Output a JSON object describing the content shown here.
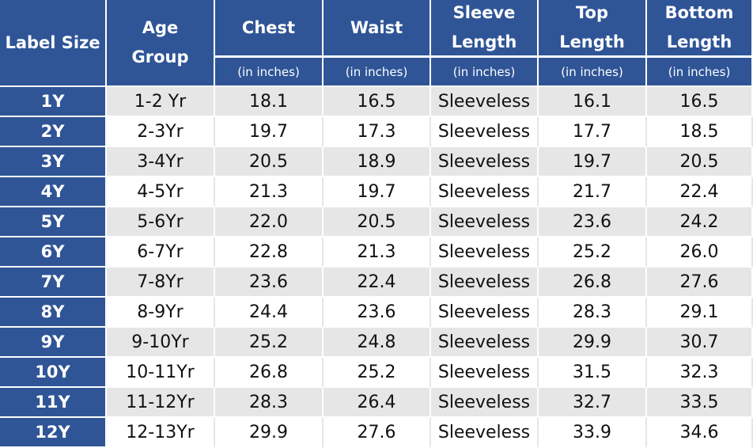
{
  "table": {
    "columns": [
      {
        "title": "Label Size"
      },
      {
        "title": "Age Group"
      },
      {
        "title": "Chest",
        "unit": "(in inches)"
      },
      {
        "title": "Waist",
        "unit": "(in inches)"
      },
      {
        "title": "Sleeve Length",
        "unit": "(in inches)"
      },
      {
        "title": "Top Length",
        "unit": "(in inches)"
      },
      {
        "title": "Bottom Length",
        "unit": "(in inches)"
      }
    ],
    "rows": [
      [
        "1Y",
        "1-2 Yr",
        "18.1",
        "16.5",
        "Sleeveless",
        "16.1",
        "16.5"
      ],
      [
        "2Y",
        "2-3Yr",
        "19.7",
        "17.3",
        "Sleeveless",
        "17.7",
        "18.5"
      ],
      [
        "3Y",
        "3-4Yr",
        "20.5",
        "18.9",
        "Sleeveless",
        "19.7",
        "20.5"
      ],
      [
        "4Y",
        "4-5Yr",
        "21.3",
        "19.7",
        "Sleeveless",
        "21.7",
        "22.4"
      ],
      [
        "5Y",
        "5-6Yr",
        "22.0",
        "20.5",
        "Sleeveless",
        "23.6",
        "24.2"
      ],
      [
        "6Y",
        "6-7Yr",
        "22.8",
        "21.3",
        "Sleeveless",
        "25.2",
        "26.0"
      ],
      [
        "7Y",
        "7-8Yr",
        "23.6",
        "22.4",
        "Sleeveless",
        "26.8",
        "27.6"
      ],
      [
        "8Y",
        "8-9Yr",
        "24.4",
        "23.6",
        "Sleeveless",
        "28.3",
        "29.1"
      ],
      [
        "9Y",
        "9-10Yr",
        "25.2",
        "24.8",
        "Sleeveless",
        "29.9",
        "30.7"
      ],
      [
        "10Y",
        "10-11Yr",
        "26.8",
        "25.2",
        "Sleeveless",
        "31.5",
        "32.3"
      ],
      [
        "11Y",
        "11-12Yr",
        "28.3",
        "26.4",
        "Sleeveless",
        "32.7",
        "33.5"
      ],
      [
        "12Y",
        "12-13Yr",
        "29.9",
        "27.6",
        "Sleeveless",
        "33.9",
        "34.6"
      ]
    ]
  }
}
